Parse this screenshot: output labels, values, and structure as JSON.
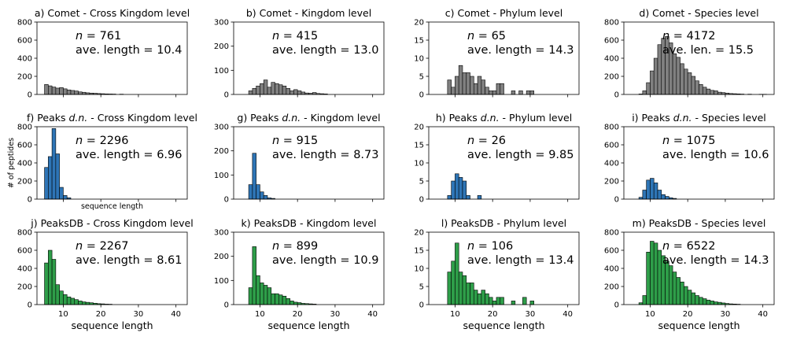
{
  "figure": {
    "ylabel": "# of peptides",
    "xlabel": "sequence length"
  },
  "colors": {
    "comet": "#808080",
    "peaks_dn": "#2e75b6",
    "peaksdb": "#2e9e49",
    "edge": "#000000"
  },
  "chart_data": [
    {
      "type": "bar",
      "id": "a",
      "title": "a) Comet - Cross Kingdom level",
      "row": 0,
      "col": 0,
      "color": "comet",
      "ylim": [
        0,
        800
      ],
      "yticks": [
        0,
        200,
        400,
        600,
        800
      ],
      "xlim": [
        3,
        43
      ],
      "xticks": [
        10,
        20,
        30,
        40
      ],
      "show_xticklabels": false,
      "n_label": "n = 761",
      "stat_label": "ave. length = 10.4",
      "bins": [
        [
          5,
          110
        ],
        [
          6,
          95
        ],
        [
          7,
          82
        ],
        [
          8,
          70
        ],
        [
          9,
          76
        ],
        [
          10,
          62
        ],
        [
          11,
          50
        ],
        [
          12,
          44
        ],
        [
          13,
          38
        ],
        [
          14,
          28
        ],
        [
          15,
          24
        ],
        [
          16,
          18
        ],
        [
          17,
          15
        ],
        [
          18,
          13
        ],
        [
          19,
          10
        ],
        [
          20,
          8
        ],
        [
          21,
          6
        ],
        [
          22,
          5
        ],
        [
          23,
          4
        ],
        [
          25,
          3
        ]
      ]
    },
    {
      "type": "bar",
      "id": "b",
      "title": "b) Comet - Kingdom level",
      "row": 0,
      "col": 1,
      "color": "comet",
      "ylim": [
        0,
        300
      ],
      "yticks": [
        0,
        100,
        200,
        300
      ],
      "xlim": [
        3,
        43
      ],
      "xticks": [
        10,
        20,
        30,
        40
      ],
      "show_xticklabels": false,
      "n_label": "n = 415",
      "stat_label": "ave. length = 13.0",
      "bins": [
        [
          7,
          15
        ],
        [
          8,
          25
        ],
        [
          9,
          35
        ],
        [
          10,
          45
        ],
        [
          11,
          60
        ],
        [
          12,
          30
        ],
        [
          13,
          50
        ],
        [
          14,
          45
        ],
        [
          15,
          40
        ],
        [
          16,
          35
        ],
        [
          17,
          25
        ],
        [
          18,
          15
        ],
        [
          19,
          20
        ],
        [
          20,
          15
        ],
        [
          21,
          10
        ],
        [
          22,
          6
        ],
        [
          23,
          5
        ],
        [
          24,
          8
        ],
        [
          25,
          4
        ],
        [
          26,
          3
        ],
        [
          27,
          2
        ]
      ]
    },
    {
      "type": "bar",
      "id": "c",
      "title": "c) Comet - Phylum level",
      "row": 0,
      "col": 2,
      "color": "comet",
      "ylim": [
        0,
        20
      ],
      "yticks": [
        0,
        5,
        10,
        15,
        20
      ],
      "xlim": [
        3,
        43
      ],
      "xticks": [
        10,
        20,
        30,
        40
      ],
      "show_xticklabels": false,
      "n_label": "n = 65",
      "stat_label": "ave. length = 14.3",
      "bins": [
        [
          8,
          4
        ],
        [
          9,
          2
        ],
        [
          10,
          5
        ],
        [
          11,
          8
        ],
        [
          12,
          6
        ],
        [
          13,
          6
        ],
        [
          14,
          5
        ],
        [
          15,
          3
        ],
        [
          16,
          5
        ],
        [
          17,
          4
        ],
        [
          18,
          2
        ],
        [
          19,
          1
        ],
        [
          20,
          1
        ],
        [
          21,
          3
        ],
        [
          22,
          3
        ],
        [
          25,
          1
        ],
        [
          27,
          1
        ],
        [
          29,
          1
        ],
        [
          30,
          1
        ]
      ]
    },
    {
      "type": "bar",
      "id": "d",
      "title": "d) Comet - Species level",
      "row": 0,
      "col": 3,
      "color": "comet",
      "ylim": [
        0,
        800
      ],
      "yticks": [
        0,
        200,
        400,
        600,
        800
      ],
      "xlim": [
        3,
        43
      ],
      "xticks": [
        10,
        20,
        30,
        40
      ],
      "show_xticklabels": false,
      "n_label": "n = 4172",
      "stat_label": "ave. len. = 15.5",
      "bins": [
        [
          7,
          5
        ],
        [
          8,
          40
        ],
        [
          9,
          130
        ],
        [
          10,
          260
        ],
        [
          11,
          400
        ],
        [
          12,
          550
        ],
        [
          13,
          620
        ],
        [
          14,
          640
        ],
        [
          15,
          570
        ],
        [
          16,
          450
        ],
        [
          17,
          410
        ],
        [
          18,
          340
        ],
        [
          19,
          280
        ],
        [
          20,
          240
        ],
        [
          21,
          200
        ],
        [
          22,
          150
        ],
        [
          23,
          110
        ],
        [
          24,
          80
        ],
        [
          25,
          60
        ],
        [
          26,
          45
        ],
        [
          27,
          40
        ],
        [
          28,
          25
        ],
        [
          29,
          20
        ],
        [
          30,
          15
        ],
        [
          31,
          10
        ],
        [
          32,
          8
        ],
        [
          33,
          6
        ],
        [
          34,
          4
        ],
        [
          36,
          3
        ],
        [
          39,
          2
        ],
        [
          40,
          2
        ]
      ]
    },
    {
      "type": "bar",
      "id": "f",
      "title": "f) Peaks d.n. - Cross Kingdom level",
      "row": 1,
      "col": 0,
      "title_parts": [
        "f) Peaks ",
        "d.n.",
        " - Cross Kingdom level"
      ],
      "color": "peaks_dn",
      "ylim": [
        0,
        800
      ],
      "yticks": [
        0,
        200,
        400,
        600,
        800
      ],
      "xlim": [
        3,
        43
      ],
      "xticks": [
        10,
        20,
        30,
        40
      ],
      "show_xticklabels": false,
      "show_ylabel": true,
      "show_small_xlabel": true,
      "n_label": "n = 2296",
      "stat_label": "ave. length = 6.96",
      "bins": [
        [
          5,
          350
        ],
        [
          6,
          470
        ],
        [
          7,
          780
        ],
        [
          8,
          500
        ],
        [
          9,
          130
        ],
        [
          10,
          40
        ],
        [
          11,
          15
        ]
      ]
    },
    {
      "type": "bar",
      "id": "g",
      "title": "g) Peaks d.n. - Kingdom level",
      "row": 1,
      "col": 1,
      "title_parts": [
        "g) Peaks ",
        "d.n.",
        " - Kingdom level"
      ],
      "color": "peaks_dn",
      "ylim": [
        0,
        300
      ],
      "yticks": [
        0,
        100,
        200,
        300
      ],
      "xlim": [
        3,
        43
      ],
      "xticks": [
        10,
        20,
        30,
        40
      ],
      "show_xticklabels": false,
      "n_label": "n = 915",
      "stat_label": "ave. length = 8.73",
      "bins": [
        [
          7,
          60
        ],
        [
          8,
          190
        ],
        [
          9,
          60
        ],
        [
          10,
          30
        ],
        [
          11,
          15
        ],
        [
          12,
          5
        ],
        [
          13,
          3
        ]
      ]
    },
    {
      "type": "bar",
      "id": "h",
      "title": "h) Peaks d.n. - Phylum level",
      "row": 1,
      "col": 2,
      "title_parts": [
        "h) Peaks ",
        "d.n.",
        " - Phylum level"
      ],
      "color": "peaks_dn",
      "ylim": [
        0,
        20
      ],
      "yticks": [
        0,
        5,
        10,
        15,
        20
      ],
      "xlim": [
        3,
        43
      ],
      "xticks": [
        10,
        20,
        30,
        40
      ],
      "show_xticklabels": false,
      "n_label": "n = 26",
      "stat_label": "ave. length = 9.85",
      "bins": [
        [
          8,
          1
        ],
        [
          9,
          5
        ],
        [
          10,
          7
        ],
        [
          11,
          6
        ],
        [
          12,
          5
        ],
        [
          13,
          1
        ],
        [
          16,
          1
        ]
      ]
    },
    {
      "type": "bar",
      "id": "i",
      "title": "i) Peaks d.n. - Species level",
      "row": 1,
      "col": 3,
      "title_parts": [
        "i) Peaks ",
        "d.n.",
        " - Species level"
      ],
      "color": "peaks_dn",
      "ylim": [
        0,
        800
      ],
      "yticks": [
        0,
        200,
        400,
        600,
        800
      ],
      "xlim": [
        3,
        43
      ],
      "xticks": [
        10,
        20,
        30,
        40
      ],
      "show_xticklabels": false,
      "n_label": "n = 1075",
      "stat_label": "ave. length = 10.6",
      "bins": [
        [
          7,
          20
        ],
        [
          8,
          100
        ],
        [
          9,
          210
        ],
        [
          10,
          230
        ],
        [
          11,
          180
        ],
        [
          12,
          100
        ],
        [
          13,
          50
        ],
        [
          14,
          30
        ],
        [
          15,
          15
        ],
        [
          16,
          8
        ]
      ]
    },
    {
      "type": "bar",
      "id": "j",
      "title": "j) PeaksDB - Cross Kingdom level",
      "row": 2,
      "col": 0,
      "color": "peaksdb",
      "ylim": [
        0,
        800
      ],
      "yticks": [
        0,
        200,
        400,
        600,
        800
      ],
      "xlim": [
        3,
        43
      ],
      "xticks": [
        10,
        20,
        30,
        40
      ],
      "show_xticklabels": true,
      "n_label": "n = 2267",
      "stat_label": "ave. length = 8.61",
      "bins": [
        [
          5,
          460
        ],
        [
          6,
          600
        ],
        [
          7,
          500
        ],
        [
          8,
          220
        ],
        [
          9,
          150
        ],
        [
          10,
          110
        ],
        [
          11,
          85
        ],
        [
          12,
          70
        ],
        [
          13,
          55
        ],
        [
          14,
          40
        ],
        [
          15,
          30
        ],
        [
          16,
          25
        ],
        [
          17,
          20
        ],
        [
          18,
          15
        ],
        [
          19,
          10
        ],
        [
          20,
          8
        ],
        [
          21,
          5
        ],
        [
          22,
          4
        ]
      ]
    },
    {
      "type": "bar",
      "id": "k",
      "title": "k) PeaksDB - Kingdom level",
      "row": 2,
      "col": 1,
      "color": "peaksdb",
      "ylim": [
        0,
        300
      ],
      "yticks": [
        0,
        100,
        200,
        300
      ],
      "xlim": [
        3,
        43
      ],
      "xticks": [
        10,
        20,
        30,
        40
      ],
      "show_xticklabels": true,
      "n_label": "n = 899",
      "stat_label": "ave. length = 10.9",
      "bins": [
        [
          7,
          70
        ],
        [
          8,
          240
        ],
        [
          9,
          120
        ],
        [
          10,
          90
        ],
        [
          11,
          80
        ],
        [
          12,
          70
        ],
        [
          13,
          45
        ],
        [
          14,
          45
        ],
        [
          15,
          40
        ],
        [
          16,
          35
        ],
        [
          17,
          25
        ],
        [
          18,
          15
        ],
        [
          19,
          10
        ],
        [
          20,
          8
        ],
        [
          21,
          5
        ],
        [
          22,
          4
        ],
        [
          23,
          3
        ],
        [
          24,
          2
        ]
      ]
    },
    {
      "type": "bar",
      "id": "l",
      "title": "l) PeaksDB - Phylum level",
      "row": 2,
      "col": 2,
      "color": "peaksdb",
      "ylim": [
        0,
        20
      ],
      "yticks": [
        0,
        5,
        10,
        15,
        20
      ],
      "xlim": [
        3,
        43
      ],
      "xticks": [
        10,
        20,
        30,
        40
      ],
      "show_xticklabels": true,
      "n_label": "n = 106",
      "stat_label": "ave. length = 13.4",
      "bins": [
        [
          8,
          9
        ],
        [
          9,
          12
        ],
        [
          10,
          17
        ],
        [
          11,
          9
        ],
        [
          12,
          8
        ],
        [
          13,
          6
        ],
        [
          14,
          6
        ],
        [
          15,
          4
        ],
        [
          16,
          3
        ],
        [
          17,
          4
        ],
        [
          18,
          3
        ],
        [
          19,
          2
        ],
        [
          20,
          1
        ],
        [
          21,
          2
        ],
        [
          22,
          2
        ],
        [
          25,
          1
        ],
        [
          28,
          2
        ],
        [
          30,
          1
        ]
      ]
    },
    {
      "type": "bar",
      "id": "m",
      "title": "m) PeaksDB - Species level",
      "row": 2,
      "col": 3,
      "color": "peaksdb",
      "ylim": [
        0,
        800
      ],
      "yticks": [
        0,
        200,
        400,
        600,
        800
      ],
      "xlim": [
        3,
        43
      ],
      "xticks": [
        10,
        20,
        30,
        40
      ],
      "show_xticklabels": true,
      "n_label": "n = 6522",
      "stat_label": "ave. length = 14.3",
      "bins": [
        [
          7,
          20
        ],
        [
          8,
          100
        ],
        [
          9,
          580
        ],
        [
          10,
          700
        ],
        [
          11,
          680
        ],
        [
          12,
          600
        ],
        [
          13,
          540
        ],
        [
          14,
          480
        ],
        [
          15,
          430
        ],
        [
          16,
          360
        ],
        [
          17,
          300
        ],
        [
          18,
          250
        ],
        [
          19,
          200
        ],
        [
          20,
          160
        ],
        [
          21,
          130
        ],
        [
          22,
          100
        ],
        [
          23,
          80
        ],
        [
          24,
          65
        ],
        [
          25,
          50
        ],
        [
          26,
          40
        ],
        [
          27,
          30
        ],
        [
          28,
          25
        ],
        [
          29,
          18
        ],
        [
          30,
          12
        ],
        [
          31,
          8
        ],
        [
          32,
          6
        ],
        [
          33,
          4
        ]
      ]
    }
  ]
}
